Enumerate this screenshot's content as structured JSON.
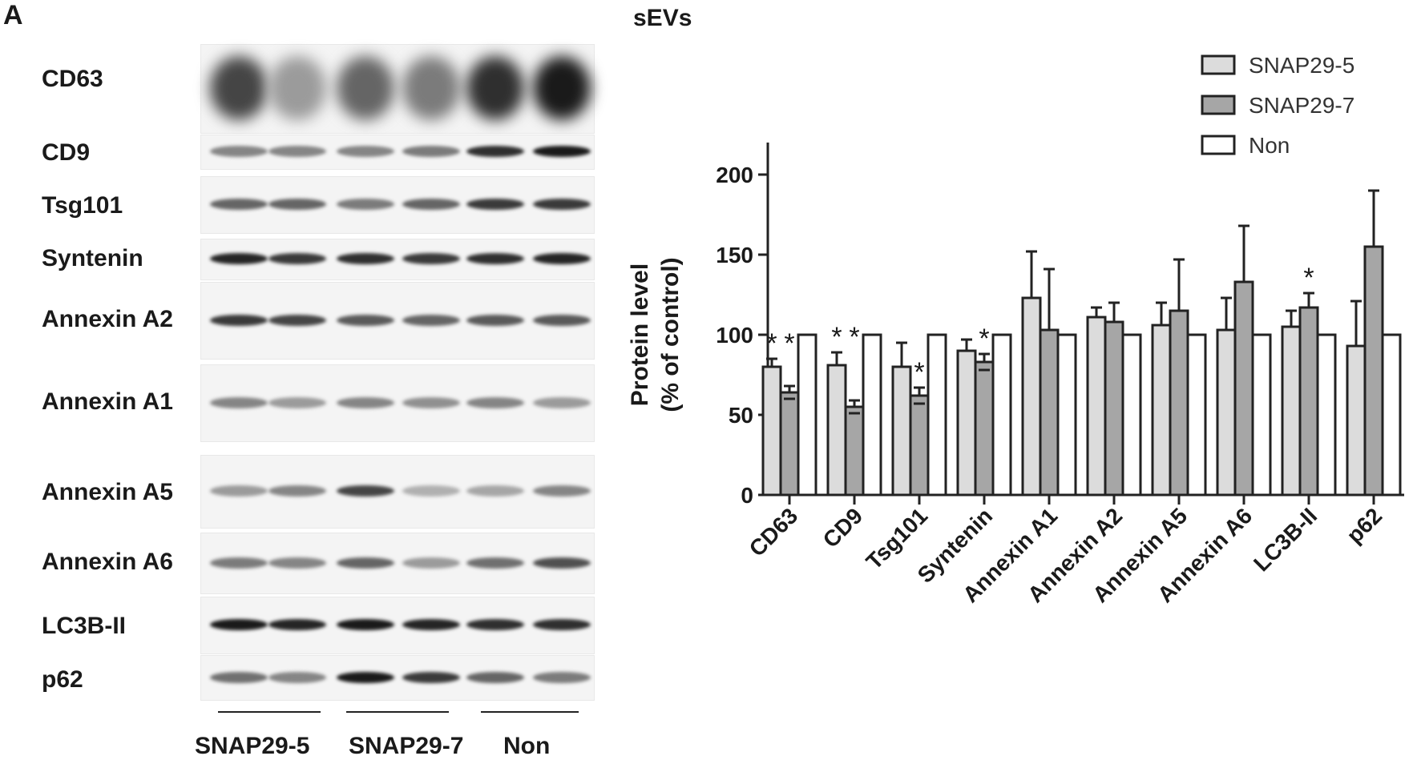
{
  "panel_label": "A",
  "blot": {
    "rows": [
      {
        "name": "CD63",
        "intensity": [
          0.75,
          0.35,
          0.6,
          0.5,
          0.85,
          0.95
        ]
      },
      {
        "name": "CD9",
        "intensity": [
          0.45,
          0.45,
          0.45,
          0.5,
          0.85,
          0.95
        ]
      },
      {
        "name": "Tsg101",
        "intensity": [
          0.6,
          0.6,
          0.5,
          0.6,
          0.8,
          0.8
        ]
      },
      {
        "name": "Syntenin",
        "intensity": [
          0.9,
          0.8,
          0.85,
          0.8,
          0.85,
          0.9
        ]
      },
      {
        "name": "Annexin A2",
        "intensity": [
          0.8,
          0.75,
          0.65,
          0.6,
          0.65,
          0.65
        ]
      },
      {
        "name": "Annexin A1",
        "intensity": [
          0.45,
          0.35,
          0.45,
          0.4,
          0.45,
          0.35
        ]
      },
      {
        "name": "Annexin A5",
        "intensity": [
          0.35,
          0.45,
          0.75,
          0.25,
          0.3,
          0.45
        ]
      },
      {
        "name": "Annexin A6",
        "intensity": [
          0.5,
          0.45,
          0.6,
          0.35,
          0.55,
          0.7
        ]
      },
      {
        "name": "LC3B-II",
        "intensity": [
          0.95,
          0.9,
          0.95,
          0.9,
          0.85,
          0.85
        ]
      },
      {
        "name": "p62",
        "intensity": [
          0.55,
          0.45,
          0.95,
          0.8,
          0.6,
          0.5
        ]
      }
    ],
    "groups": [
      "SNAP29-5",
      "SNAP29-7",
      "Non"
    ]
  },
  "chart_data": {
    "type": "bar",
    "title": "sEVs",
    "ylabel_line1": "Protein level",
    "ylabel_line2": "(% of control)",
    "ylim": [
      0,
      200
    ],
    "yticks": [
      0,
      50,
      100,
      150,
      200
    ],
    "categories": [
      "CD63",
      "CD9",
      "Tsg101",
      "Syntenin",
      "Annexin A1",
      "Annexin A2",
      "Annexin A5",
      "Annexin A6",
      "LC3B-II",
      "p62"
    ],
    "series": [
      {
        "name": "SNAP29-5",
        "color": "#dcdcdc",
        "values": [
          80,
          81,
          80,
          90,
          123,
          111,
          106,
          103,
          105,
          93
        ],
        "errors": [
          5,
          8,
          15,
          7,
          29,
          6,
          14,
          20,
          10,
          28
        ]
      },
      {
        "name": "SNAP29-7",
        "color": "#a6a6a6",
        "values": [
          64,
          55,
          62,
          83,
          103,
          108,
          115,
          133,
          117,
          155
        ],
        "errors": [
          4,
          4,
          5,
          5,
          38,
          12,
          32,
          35,
          9,
          35
        ]
      },
      {
        "name": "Non",
        "color": "#ffffff",
        "values": [
          100,
          100,
          100,
          100,
          100,
          100,
          100,
          100,
          100,
          100
        ],
        "errors": [
          0,
          0,
          0,
          0,
          0,
          0,
          0,
          0,
          0,
          0
        ]
      }
    ],
    "significance": [
      {
        "category": "CD63",
        "series": "SNAP29-5",
        "mark": "*"
      },
      {
        "category": "CD63",
        "series": "SNAP29-7",
        "mark": "*"
      },
      {
        "category": "CD9",
        "series": "SNAP29-5",
        "mark": "*"
      },
      {
        "category": "CD9",
        "series": "SNAP29-7",
        "mark": "*"
      },
      {
        "category": "Tsg101",
        "series": "SNAP29-7",
        "mark": "*"
      },
      {
        "category": "Syntenin",
        "series": "SNAP29-7",
        "mark": "*"
      },
      {
        "category": "LC3B-II",
        "series": "SNAP29-7",
        "mark": "*"
      }
    ],
    "legend_position": "top-right",
    "grid": false
  }
}
